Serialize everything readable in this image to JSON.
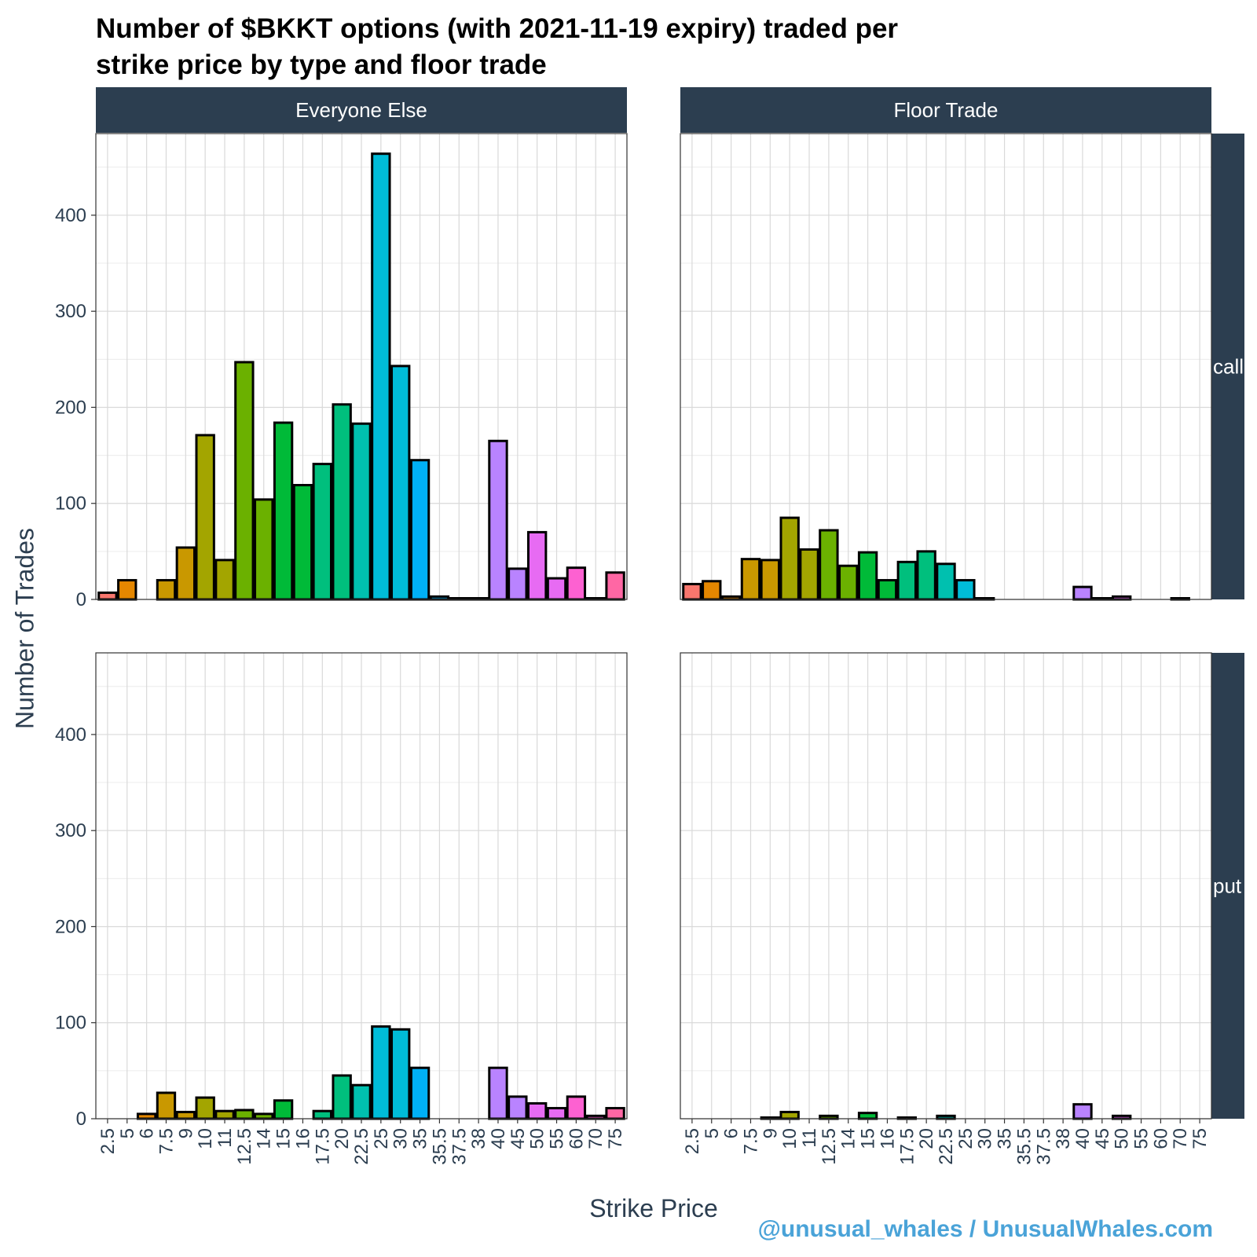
{
  "title_lines": [
    "Number of $BKKT options (with 2021-11-19 expiry) traded per",
    "strike price by type and floor trade"
  ],
  "watermark": "@unusual_whales / UnusualWhales.com",
  "colors": {
    "strip": "#2c3e50",
    "grid": "#d9d9d9",
    "border": "#333333",
    "bar_outline": "#000000",
    "axis_text": "#2c3e50",
    "watermark": "#4aa3d8",
    "bar_palette": [
      "#F8766D",
      "#E58700",
      "#C99800",
      "#A3A500",
      "#6BB100",
      "#00BA38",
      "#00BF7D",
      "#00C0AF",
      "#00BCD8",
      "#00B0F6",
      "#619CFF",
      "#B983FF",
      "#E76BF3",
      "#FD61D1",
      "#FF67A4"
    ]
  },
  "chart_data": {
    "type": "bar",
    "title": "Number of $BKKT options (with 2021-11-19 expiry) traded per strike price by type and floor trade",
    "xlabel": "Strike Price",
    "ylabel": "Number of Trades",
    "categories": [
      "2.5",
      "5",
      "6",
      "7.5",
      "9",
      "10",
      "11",
      "12.5",
      "14",
      "15",
      "16",
      "17.5",
      "20",
      "22.5",
      "25",
      "30",
      "35",
      "35.5",
      "37.5",
      "38",
      "40",
      "45",
      "50",
      "55",
      "60",
      "70",
      "75"
    ],
    "ylim": [
      0,
      485
    ],
    "yticks": [
      0,
      100,
      200,
      300,
      400
    ],
    "grid": true,
    "legend": "none",
    "facet_cols": [
      "Everyone Else",
      "Floor Trade"
    ],
    "facet_rows": [
      "call",
      "put"
    ],
    "panels": [
      {
        "col": "Everyone Else",
        "row": "call",
        "values": [
          7,
          20,
          null,
          20,
          54,
          171,
          41,
          247,
          104,
          184,
          119,
          141,
          203,
          183,
          464,
          243,
          145,
          3,
          1,
          1,
          165,
          32,
          70,
          22,
          33,
          1,
          28
        ]
      },
      {
        "col": "Floor Trade",
        "row": "call",
        "values": [
          16,
          19,
          3,
          42,
          41,
          85,
          52,
          72,
          35,
          49,
          20,
          39,
          50,
          37,
          20,
          1,
          null,
          null,
          null,
          null,
          13,
          1,
          3,
          null,
          null,
          1,
          null
        ]
      },
      {
        "col": "Everyone Else",
        "row": "put",
        "values": [
          null,
          null,
          5,
          27,
          7,
          22,
          8,
          9,
          5,
          19,
          null,
          8,
          45,
          35,
          96,
          93,
          53,
          null,
          null,
          null,
          53,
          23,
          16,
          11,
          23,
          3,
          11
        ]
      },
      {
        "col": "Floor Trade",
        "row": "put",
        "values": [
          null,
          null,
          null,
          null,
          1,
          7,
          null,
          3,
          null,
          6,
          null,
          1,
          null,
          3,
          null,
          null,
          null,
          null,
          null,
          null,
          15,
          null,
          3,
          null,
          null,
          null,
          null
        ]
      }
    ]
  }
}
